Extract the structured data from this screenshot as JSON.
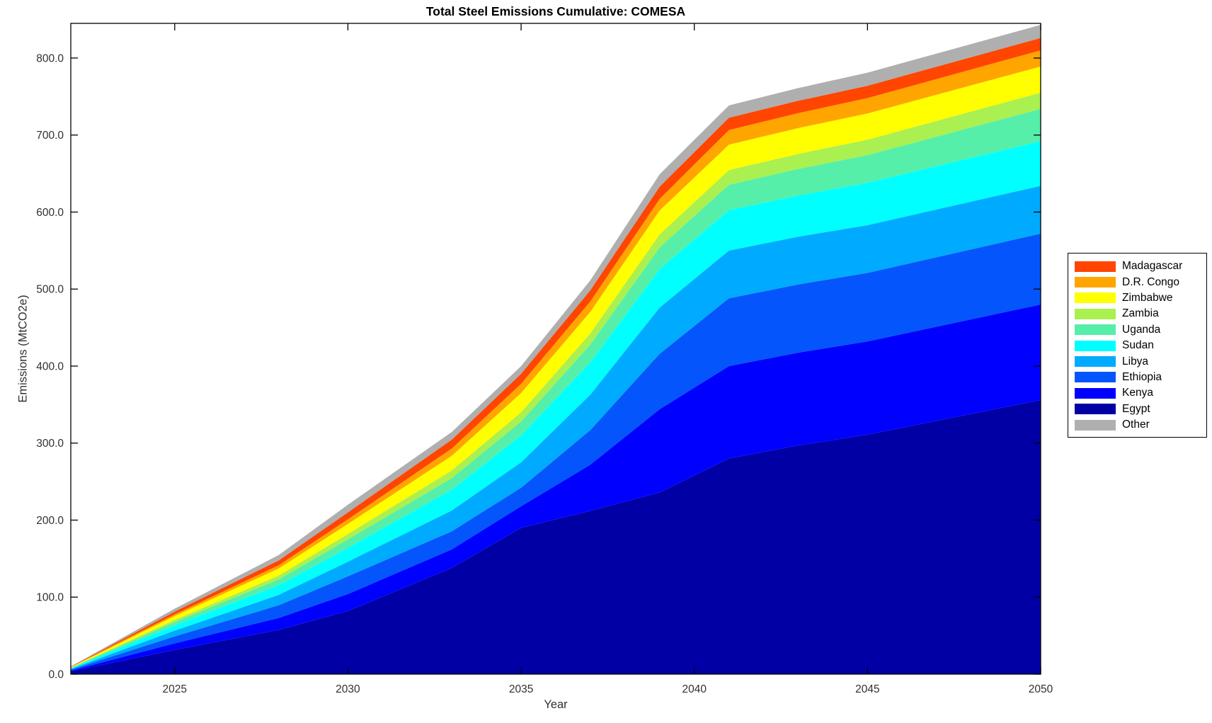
{
  "title": "Total Steel Emissions Cumulative: COMESA",
  "axes": {
    "xlabel": "Year",
    "ylabel": "Emissions (MtCO2e)"
  },
  "chart_data": {
    "type": "area",
    "stacked": true,
    "title": "Total Steel Emissions Cumulative: COMESA",
    "xlabel": "Year",
    "ylabel": "Emissions (MtCO2e)",
    "xlim": [
      2022,
      2050
    ],
    "ylim": [
      0,
      845
    ],
    "grid": false,
    "legend_position": "right-outside",
    "background_color": "#FFFFFF",
    "axis_color": "#000000",
    "x": [
      2022,
      2025,
      2028,
      2030,
      2033,
      2035,
      2037,
      2039,
      2041,
      2043,
      2045,
      2050
    ],
    "series": [
      {
        "name": "Egypt",
        "color": "#0000A5",
        "values": [
          3.7,
          31.5,
          57.5,
          82,
          138,
          190,
          212,
          236,
          280,
          297,
          311,
          356
        ]
      },
      {
        "name": "Kenya",
        "color": "#0000FF",
        "values": [
          1.0,
          8.5,
          15.4,
          22,
          24,
          28,
          60,
          108,
          120,
          120.5,
          121,
          124
        ]
      },
      {
        "name": "Ethiopia",
        "color": "#0455FC",
        "values": [
          1.1,
          9.0,
          16.5,
          23,
          23.5,
          24,
          45,
          72,
          88,
          88.5,
          89,
          92
        ]
      },
      {
        "name": "Libya",
        "color": "#00AAFF",
        "values": [
          0.9,
          7.5,
          13.5,
          19,
          27,
          33,
          46,
          60,
          62,
          62,
          62,
          62
        ]
      },
      {
        "name": "Sudan",
        "color": "#00FFFF",
        "values": [
          0.8,
          7.0,
          12.5,
          18,
          27,
          35,
          42,
          50,
          52.5,
          53.5,
          55,
          58
        ]
      },
      {
        "name": "Uganda",
        "color": "#55EFA9",
        "values": [
          0.5,
          4.2,
          7.6,
          11,
          15,
          18,
          23,
          28,
          33,
          34.5,
          36,
          42
        ]
      },
      {
        "name": "Zambia",
        "color": "#AAF050",
        "values": [
          0.3,
          2.7,
          4.9,
          7,
          10,
          12,
          14.5,
          17,
          19,
          19.5,
          20,
          21
        ]
      },
      {
        "name": "Zimbabwe",
        "color": "#FFFF00",
        "values": [
          0.6,
          5.0,
          9.2,
          13,
          19,
          25,
          28,
          31,
          33,
          33.5,
          34,
          34
        ]
      },
      {
        "name": "D.R. Congo",
        "color": "#FFA500",
        "values": [
          0.3,
          2.3,
          4.2,
          6,
          9.5,
          12,
          13.5,
          15,
          19,
          19.5,
          20,
          21
        ]
      },
      {
        "name": "Madagascar",
        "color": "#FF4500",
        "values": [
          0.4,
          3.5,
          6.3,
          9,
          11.5,
          13,
          14.5,
          16,
          16,
          16,
          16,
          16
        ]
      },
      {
        "name": "Other",
        "color": "#AFAFAF",
        "values": [
          0.4,
          3.8,
          7.0,
          10,
          10,
          10,
          13,
          16,
          16,
          16.5,
          17,
          17
        ]
      }
    ],
    "legend_order_top_to_bottom": [
      "Madagascar",
      "D.R. Congo",
      "Zimbabwe",
      "Zambia",
      "Uganda",
      "Sudan",
      "Libya",
      "Ethiopia",
      "Kenya",
      "Egypt",
      "Other"
    ],
    "xticks": [
      {
        "value": 2025,
        "label": "2025"
      },
      {
        "value": 2030,
        "label": "2030"
      },
      {
        "value": 2035,
        "label": "2035"
      },
      {
        "value": 2040,
        "label": "2040"
      },
      {
        "value": 2045,
        "label": "2045"
      },
      {
        "value": 2050,
        "label": "2050"
      }
    ],
    "yticks": [
      {
        "value": 0,
        "label": "0.0"
      },
      {
        "value": 100,
        "label": "100.0"
      },
      {
        "value": 200,
        "label": "200.0"
      },
      {
        "value": 300,
        "label": "300.0"
      },
      {
        "value": 400,
        "label": "400.0"
      },
      {
        "value": 500,
        "label": "500.0"
      },
      {
        "value": 600,
        "label": "600.0"
      },
      {
        "value": 700,
        "label": "700.0"
      },
      {
        "value": 800,
        "label": "800.0"
      }
    ]
  }
}
